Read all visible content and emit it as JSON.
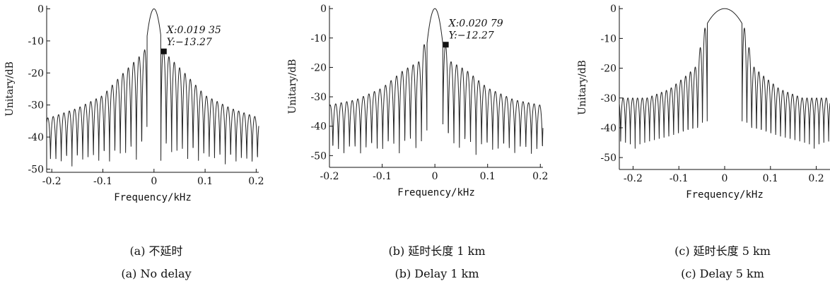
{
  "chart_data": [
    {
      "type": "line",
      "xlabel": "Frequency/kHz",
      "ylabel": "Unitary/dB",
      "xlim": [
        -0.21,
        0.205
      ],
      "ylim": [
        -51,
        1
      ],
      "xticks": [
        "-0.2",
        "-0.1",
        "0",
        "0.1",
        "0.2"
      ],
      "xtick_values": [
        -0.2,
        -0.1,
        0,
        0.1,
        0.2
      ],
      "yticks": [
        "0",
        "-10",
        "-20",
        "-30",
        "-40",
        "-50"
      ],
      "ytick_values": [
        0,
        -10,
        -20,
        -30,
        -40,
        -50
      ],
      "grid": false,
      "model": {
        "main_lobe_width": 0.0135,
        "lobe_spacing": 0.0105,
        "peak_envelope": [
          [
            0.0135,
            -8.5
          ],
          [
            0.019,
            -13.27
          ],
          [
            0.06,
            -20
          ],
          [
            0.1,
            -27
          ],
          [
            0.15,
            -31
          ],
          [
            0.205,
            -34
          ]
        ],
        "null_floor": -50
      },
      "marker": {
        "x": 0.01935,
        "y": -13.27,
        "label_x": "X:0.019 35",
        "label_y": "Y:−13.27"
      },
      "caption_cn": "(a) 不延时",
      "caption_en": "(a) No delay"
    },
    {
      "type": "line",
      "xlabel": "Frequency/kHz",
      "ylabel": "Unitary/dB",
      "xlim": [
        -0.2,
        0.205
      ],
      "ylim": [
        -54,
        1
      ],
      "xticks": [
        "-0.2",
        "-0.1",
        "0",
        "0.1",
        "0.2"
      ],
      "xtick_values": [
        -0.2,
        -0.1,
        0,
        0.1,
        0.2
      ],
      "yticks": [
        "0",
        "-10",
        "-20",
        "-30",
        "-40",
        "-50"
      ],
      "ytick_values": [
        0,
        -10,
        -20,
        -30,
        -40,
        -50
      ],
      "grid": false,
      "model": {
        "main_lobe_width": 0.015,
        "lobe_spacing": 0.0105,
        "peak_envelope": [
          [
            0.015,
            -12
          ],
          [
            0.021,
            -12.27
          ],
          [
            0.03,
            -18
          ],
          [
            0.06,
            -21
          ],
          [
            0.1,
            -27
          ],
          [
            0.15,
            -31
          ],
          [
            0.205,
            -33
          ]
        ],
        "null_floor": -51
      },
      "marker": {
        "x": 0.02079,
        "y": -12.27,
        "label_x": "X:0.020 79",
        "label_y": "Y:−12.27"
      },
      "caption_cn": "(b) 延时长度 1 km",
      "caption_en": "(b) Delay  1 km"
    },
    {
      "type": "line",
      "xlabel": "Frequency/kHz",
      "ylabel": "Unitary/dB",
      "xlim": [
        -0.23,
        0.23
      ],
      "ylim": [
        -54,
        1
      ],
      "xticks": [
        "-0.2",
        "-0.1",
        "0",
        "0.1",
        "0.2"
      ],
      "xtick_values": [
        -0.2,
        -0.1,
        0,
        0.1,
        0.2
      ],
      "yticks": [
        "0",
        "-10",
        "-20",
        "-30",
        "-40",
        "-50"
      ],
      "ytick_values": [
        0,
        -10,
        -20,
        -30,
        -40,
        -50
      ],
      "grid": false,
      "model": {
        "main_lobe_width": 0.038,
        "lobe_spacing": 0.0105,
        "peak_envelope": [
          [
            0.04,
            -5
          ],
          [
            0.05,
            -10
          ],
          [
            0.06,
            -19
          ],
          [
            0.08,
            -22
          ],
          [
            0.12,
            -27
          ],
          [
            0.17,
            -30
          ],
          [
            0.23,
            -30
          ]
        ],
        "null_floor": -47
      },
      "marker": null,
      "caption_cn": "(c) 延时长度 5 km",
      "caption_en": "(c) Delay  5 km"
    }
  ]
}
